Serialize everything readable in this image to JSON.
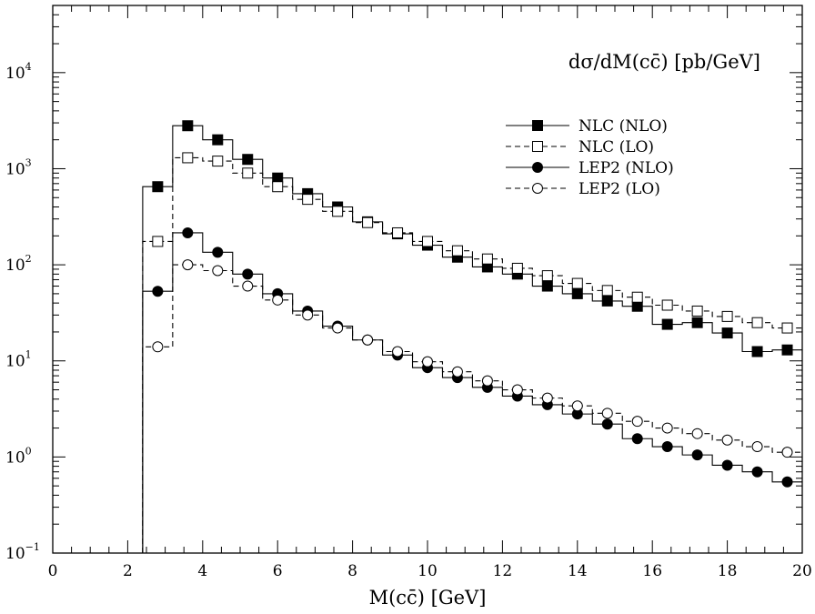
{
  "chart_data": {
    "type": "line",
    "title": "dσ/dM(cc̄) [pb/GeV]",
    "xlabel": "M(cc̄) [GeV]",
    "ylabel": "",
    "xlim": [
      0,
      20
    ],
    "ylim": [
      0.1,
      50000
    ],
    "yscale": "log",
    "x_ticks": [
      0,
      2,
      4,
      6,
      8,
      10,
      12,
      14,
      16,
      18,
      20
    ],
    "y_ticks": [
      {
        "value": 0.1,
        "base": "10",
        "exp": "−1"
      },
      {
        "value": 1,
        "base": "10",
        "exp": "0"
      },
      {
        "value": 10,
        "base": "10",
        "exp": "1"
      },
      {
        "value": 100,
        "base": "10",
        "exp": "2"
      },
      {
        "value": 1000,
        "base": "10",
        "exp": "3"
      },
      {
        "value": 10000,
        "base": "10",
        "exp": "4"
      }
    ],
    "legend_position": "top-right",
    "bin_edges": [
      2.4,
      3.2,
      4.0,
      4.8,
      5.6,
      6.4,
      7.2,
      8.0,
      8.8,
      9.6,
      10.4,
      11.2,
      12.0,
      12.8,
      13.6,
      14.4,
      15.2,
      16.0,
      16.8,
      17.6,
      18.4,
      19.2,
      20.0
    ],
    "series": [
      {
        "name": "NLC (NLO)",
        "line": "solid",
        "marker": "filled-square",
        "x": [
          2.8,
          3.6,
          4.4,
          5.2,
          6.0,
          6.8,
          7.6,
          8.4,
          9.2,
          10.0,
          10.8,
          11.6,
          12.4,
          13.2,
          14.0,
          14.8,
          15.6,
          16.4,
          17.2,
          18.0,
          18.8,
          19.6
        ],
        "values": [
          650,
          2800,
          2000,
          1250,
          800,
          550,
          400,
          280,
          210,
          160,
          120,
          95,
          80,
          60,
          50,
          42,
          37,
          24,
          25,
          19.5,
          12.5,
          13
        ],
        "hist_values": [
          650,
          2800,
          2000,
          1250,
          800,
          550,
          400,
          280,
          210,
          160,
          120,
          95,
          80,
          60,
          50,
          42,
          37,
          24,
          25,
          19.5,
          12.5,
          13
        ]
      },
      {
        "name": "NLC (LO)",
        "line": "dashed",
        "marker": "open-square",
        "x": [
          2.8,
          3.6,
          4.4,
          5.2,
          6.0,
          6.8,
          7.6,
          8.4,
          9.2,
          10.0,
          10.8,
          11.6,
          12.4,
          13.2,
          14.0,
          14.8,
          15.6,
          16.4,
          17.2,
          18.0,
          18.8,
          19.6
        ],
        "values": [
          175,
          1300,
          1200,
          900,
          650,
          480,
          360,
          275,
          215,
          175,
          140,
          115,
          92,
          77,
          64,
          54,
          46,
          38,
          33,
          29,
          25,
          22
        ],
        "hist_values": [
          175,
          1300,
          1200,
          900,
          650,
          480,
          360,
          275,
          215,
          175,
          140,
          115,
          92,
          77,
          64,
          54,
          46,
          38,
          33,
          29,
          25,
          22
        ]
      },
      {
        "name": "LEP2 (NLO)",
        "line": "solid",
        "marker": "filled-circle",
        "x": [
          2.8,
          3.6,
          4.4,
          5.2,
          6.0,
          6.8,
          7.6,
          8.4,
          9.2,
          10.0,
          10.8,
          11.6,
          12.4,
          13.2,
          14.0,
          14.8,
          15.6,
          16.4,
          17.2,
          18.0,
          18.8,
          19.6
        ],
        "values": [
          53,
          215,
          135,
          80,
          50,
          33,
          23,
          16.5,
          11.5,
          8.5,
          6.7,
          5.3,
          4.3,
          3.5,
          2.8,
          2.2,
          1.55,
          1.28,
          1.05,
          0.82,
          0.7,
          0.55
        ],
        "hist_values": [
          53,
          215,
          135,
          80,
          50,
          33,
          23,
          16.5,
          11.5,
          8.5,
          6.7,
          5.3,
          4.3,
          3.5,
          2.8,
          2.2,
          1.55,
          1.28,
          1.05,
          0.82,
          0.7,
          0.55
        ]
      },
      {
        "name": "LEP2 (LO)",
        "line": "dashed",
        "marker": "open-circle",
        "x": [
          2.8,
          3.6,
          4.4,
          5.2,
          6.0,
          6.8,
          7.6,
          8.4,
          9.2,
          10.0,
          10.8,
          11.6,
          12.4,
          13.2,
          14.0,
          14.8,
          15.6,
          16.4,
          17.2,
          18.0,
          18.8,
          19.6
        ],
        "values": [
          14,
          100,
          87,
          60,
          43,
          30,
          22,
          16.5,
          12.5,
          9.8,
          7.7,
          6.2,
          5.0,
          4.1,
          3.4,
          2.85,
          2.35,
          2.0,
          1.75,
          1.5,
          1.28,
          1.12
        ],
        "hist_values": [
          14,
          100,
          87,
          60,
          43,
          30,
          22,
          16.5,
          12.5,
          9.8,
          7.7,
          6.2,
          5.0,
          4.1,
          3.4,
          2.85,
          2.35,
          2.0,
          1.75,
          1.5,
          1.28,
          1.12
        ]
      }
    ]
  }
}
